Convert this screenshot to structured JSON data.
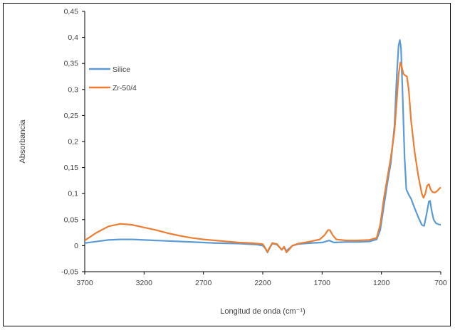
{
  "chart_data": {
    "type": "line",
    "title": "",
    "xlabel": "Longitud de onda (cm⁻¹)",
    "ylabel": "Absorbancia",
    "xlim": [
      3700,
      700
    ],
    "x_reversed": true,
    "ylim": [
      -0.05,
      0.45
    ],
    "x_ticks": [
      3700,
      3200,
      2700,
      2200,
      1700,
      1200,
      700
    ],
    "x_tick_labels": [
      "3700",
      "3200",
      "2700",
      "2200",
      "1700",
      "1200",
      "700"
    ],
    "y_ticks": [
      -0.05,
      0,
      0.05,
      0.1,
      0.15,
      0.2,
      0.25,
      0.3,
      0.35,
      0.4,
      0.45
    ],
    "y_tick_labels": [
      "-0,05",
      "0",
      "0,05",
      "0,1",
      "0,15",
      "0,2",
      "0,25",
      "0,3",
      "0,35",
      "0,4",
      "0,45"
    ],
    "grid": false,
    "legend_position": "top-left",
    "series": [
      {
        "name": "Silice",
        "color": "#5B9BD5",
        "points": [
          [
            3700,
            0.005
          ],
          [
            3600,
            0.008
          ],
          [
            3500,
            0.011
          ],
          [
            3400,
            0.012
          ],
          [
            3300,
            0.012
          ],
          [
            3200,
            0.011
          ],
          [
            3000,
            0.009
          ],
          [
            2800,
            0.007
          ],
          [
            2600,
            0.005
          ],
          [
            2400,
            0.004
          ],
          [
            2250,
            0.002
          ],
          [
            2200,
            0.0
          ],
          [
            2180,
            -0.005
          ],
          [
            2160,
            -0.013
          ],
          [
            2145,
            -0.006
          ],
          [
            2120,
            0.004
          ],
          [
            2080,
            0.002
          ],
          [
            2040,
            -0.008
          ],
          [
            2020,
            -0.003
          ],
          [
            2000,
            -0.01
          ],
          [
            1980,
            -0.006
          ],
          [
            1950,
            0.0
          ],
          [
            1900,
            0.003
          ],
          [
            1800,
            0.005
          ],
          [
            1700,
            0.006
          ],
          [
            1640,
            0.01
          ],
          [
            1600,
            0.006
          ],
          [
            1500,
            0.007
          ],
          [
            1400,
            0.007
          ],
          [
            1300,
            0.008
          ],
          [
            1240,
            0.012
          ],
          [
            1210,
            0.03
          ],
          [
            1180,
            0.075
          ],
          [
            1150,
            0.12
          ],
          [
            1120,
            0.16
          ],
          [
            1090,
            0.23
          ],
          [
            1070,
            0.33
          ],
          [
            1055,
            0.385
          ],
          [
            1045,
            0.395
          ],
          [
            1035,
            0.38
          ],
          [
            1020,
            0.28
          ],
          [
            1005,
            0.17
          ],
          [
            990,
            0.108
          ],
          [
            970,
            0.098
          ],
          [
            950,
            0.09
          ],
          [
            920,
            0.072
          ],
          [
            890,
            0.055
          ],
          [
            860,
            0.04
          ],
          [
            840,
            0.038
          ],
          [
            820,
            0.06
          ],
          [
            800,
            0.085
          ],
          [
            790,
            0.086
          ],
          [
            775,
            0.065
          ],
          [
            760,
            0.05
          ],
          [
            740,
            0.043
          ],
          [
            720,
            0.041
          ],
          [
            700,
            0.04
          ]
        ]
      },
      {
        "name": "Zr-50/4",
        "color": "#ED7D31",
        "points": [
          [
            3700,
            0.01
          ],
          [
            3600,
            0.025
          ],
          [
            3500,
            0.037
          ],
          [
            3400,
            0.042
          ],
          [
            3300,
            0.04
          ],
          [
            3200,
            0.035
          ],
          [
            3100,
            0.03
          ],
          [
            3000,
            0.024
          ],
          [
            2900,
            0.019
          ],
          [
            2800,
            0.015
          ],
          [
            2700,
            0.012
          ],
          [
            2600,
            0.01
          ],
          [
            2500,
            0.008
          ],
          [
            2400,
            0.006
          ],
          [
            2300,
            0.005
          ],
          [
            2200,
            0.003
          ],
          [
            2180,
            -0.004
          ],
          [
            2160,
            -0.012
          ],
          [
            2145,
            -0.005
          ],
          [
            2120,
            0.005
          ],
          [
            2080,
            0.003
          ],
          [
            2040,
            -0.008
          ],
          [
            2020,
            -0.002
          ],
          [
            2000,
            -0.013
          ],
          [
            1980,
            -0.008
          ],
          [
            1950,
            0.0
          ],
          [
            1900,
            0.004
          ],
          [
            1800,
            0.008
          ],
          [
            1720,
            0.012
          ],
          [
            1680,
            0.02
          ],
          [
            1650,
            0.03
          ],
          [
            1635,
            0.03
          ],
          [
            1610,
            0.02
          ],
          [
            1580,
            0.012
          ],
          [
            1500,
            0.01
          ],
          [
            1400,
            0.01
          ],
          [
            1300,
            0.011
          ],
          [
            1240,
            0.015
          ],
          [
            1210,
            0.04
          ],
          [
            1180,
            0.09
          ],
          [
            1150,
            0.13
          ],
          [
            1120,
            0.17
          ],
          [
            1090,
            0.22
          ],
          [
            1070,
            0.28
          ],
          [
            1055,
            0.33
          ],
          [
            1040,
            0.352
          ],
          [
            1030,
            0.345
          ],
          [
            1015,
            0.33
          ],
          [
            1000,
            0.327
          ],
          [
            985,
            0.325
          ],
          [
            970,
            0.3
          ],
          [
            950,
            0.24
          ],
          [
            920,
            0.18
          ],
          [
            890,
            0.135
          ],
          [
            860,
            0.1
          ],
          [
            845,
            0.092
          ],
          [
            830,
            0.1
          ],
          [
            815,
            0.115
          ],
          [
            800,
            0.118
          ],
          [
            785,
            0.108
          ],
          [
            770,
            0.103
          ],
          [
            750,
            0.102
          ],
          [
            730,
            0.105
          ],
          [
            710,
            0.11
          ],
          [
            700,
            0.112
          ]
        ]
      }
    ]
  }
}
